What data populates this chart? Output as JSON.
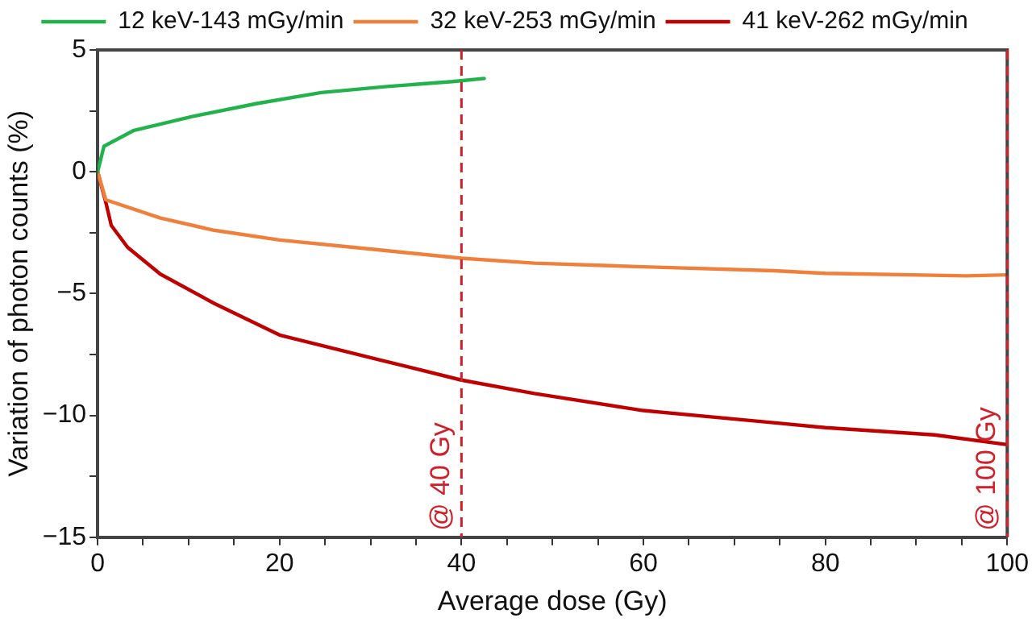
{
  "chart_data": {
    "type": "line",
    "xlabel": "Average dose (Gy)",
    "ylabel": "Variation of photon counts (%)",
    "xlim": [
      0,
      100
    ],
    "ylim": [
      -15,
      5
    ],
    "xticks": [
      0,
      {
        "value": 5,
        "label": null
      },
      {
        "value": 10,
        "label": null
      },
      {
        "value": 15,
        "label": null
      },
      20,
      {
        "value": 25,
        "label": null
      },
      {
        "value": 30,
        "label": null
      },
      {
        "value": 35,
        "label": null
      },
      40,
      {
        "value": 45,
        "label": null
      },
      {
        "value": 50,
        "label": null
      },
      {
        "value": 55,
        "label": null
      },
      60,
      {
        "value": 65,
        "label": null
      },
      {
        "value": 70,
        "label": null
      },
      {
        "value": 75,
        "label": null
      },
      80,
      {
        "value": 85,
        "label": null
      },
      {
        "value": 90,
        "label": null
      },
      {
        "value": 95,
        "label": null
      },
      100
    ],
    "yticks": [
      -15,
      {
        "value": -12.5,
        "label": null
      },
      -10,
      {
        "value": -7.5,
        "label": null
      },
      -5,
      {
        "value": -2.5,
        "label": null
      },
      0,
      {
        "value": 2.5,
        "label": null
      },
      5
    ],
    "grid": false,
    "legend": "top",
    "marker": "none",
    "line_style": "solid",
    "series": [
      {
        "name": "12 keV-143 mGy/min",
        "color": "#22b24c",
        "x": [
          0,
          0.7,
          4,
          10.4,
          17.5,
          24.6,
          31.8,
          39,
          42.5
        ],
        "values": [
          0,
          1.05,
          1.7,
          2.27,
          2.8,
          3.25,
          3.5,
          3.7,
          3.83
        ]
      },
      {
        "name": "32 keV-253 mGy/min",
        "color": "#f07f3c",
        "x": [
          0,
          0.9,
          6.9,
          12.8,
          20,
          30.8,
          40,
          48,
          60,
          74.3,
          80,
          95.5,
          100
        ],
        "values": [
          0,
          -1.15,
          -1.9,
          -2.4,
          -2.8,
          -3.2,
          -3.55,
          -3.75,
          -3.9,
          -4.06,
          -4.17,
          -4.27,
          -4.23
        ]
      },
      {
        "name": "41 keV-262 mGy/min",
        "color": "#c00000",
        "x": [
          0,
          0.9,
          1.5,
          3.3,
          6.9,
          12.8,
          20,
          30.8,
          40,
          48,
          60,
          74.3,
          80,
          92,
          100
        ],
        "values": [
          0,
          -1.25,
          -2.2,
          -3.1,
          -4.2,
          -5.4,
          -6.7,
          -7.7,
          -8.55,
          -9.1,
          -9.8,
          -10.3,
          -10.5,
          -10.8,
          -11.2
        ]
      }
    ],
    "ref_lines": [
      {
        "axis": "x",
        "value": 40,
        "label": "@ 40 Gy",
        "color": "#d0202a",
        "line_style": "dashed"
      },
      {
        "axis": "x",
        "value": 100,
        "label": "@ 100 Gy",
        "color": "#d0202a",
        "line_style": "dashed"
      }
    ]
  }
}
